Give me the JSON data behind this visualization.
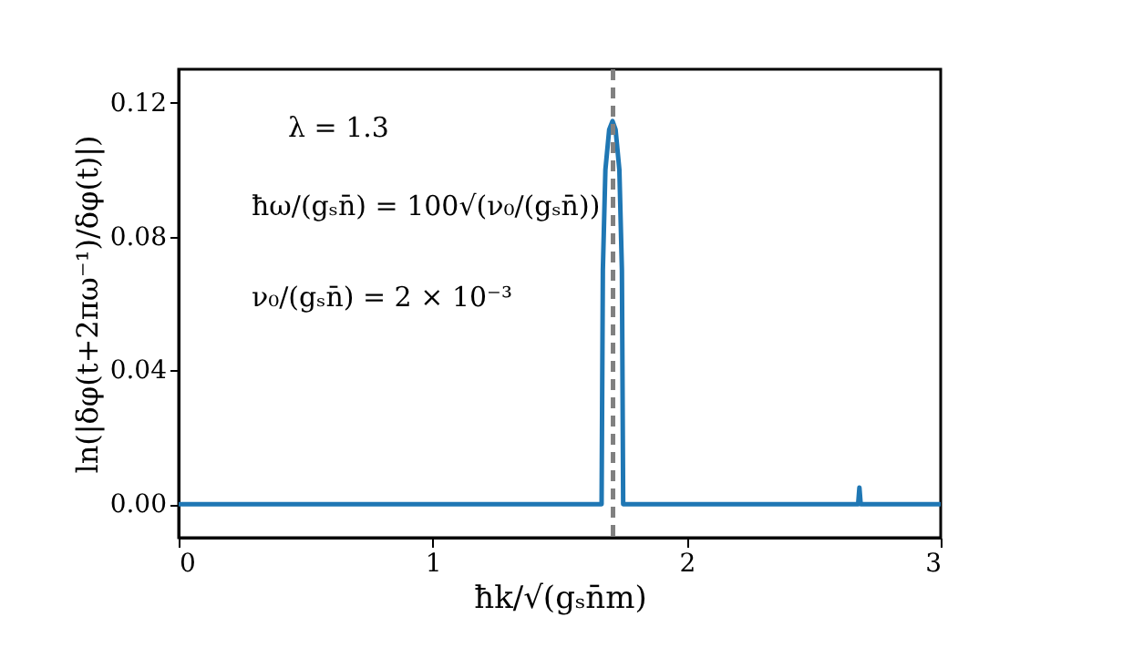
{
  "chart_data": {
    "type": "line",
    "xlabel": "ħk/√(gₛn̄m)",
    "ylabel": "ln(|δφ(t+2πω⁻¹)/δφ(t)|)",
    "x": [
      0,
      1.6,
      1.665,
      1.67,
      1.68,
      1.695,
      1.708,
      1.72,
      1.735,
      1.745,
      1.75,
      2.67,
      2.675,
      2.68,
      2.685,
      2.69,
      3
    ],
    "series": [
      {
        "color": "#1f77b4",
        "values": [
          0,
          0,
          0,
          0.07,
          0.1,
          0.112,
          0.1145,
          0.112,
          0.1,
          0.07,
          0,
          0,
          0,
          0.005,
          0,
          0,
          0
        ]
      }
    ],
    "xlim": [
      0,
      3
    ],
    "xticks": [
      0,
      1,
      2,
      3
    ],
    "ylim": [
      -0.01,
      0.13
    ],
    "yticks": [
      {
        "value": 0,
        "label": "0.00"
      },
      {
        "value": 0.04,
        "label": "0.04"
      },
      {
        "value": 0.08,
        "label": "0.08"
      },
      {
        "value": 0.12,
        "label": "0.12"
      }
    ],
    "ref_lines": [
      {
        "axis": "x",
        "value": 1.71,
        "color": "#808080",
        "line_style": "dashed"
      }
    ],
    "annotations": [
      "λ = 1.3",
      "ħω/(gₛn̄) = 100√(ν₀/(gₛn̄))",
      "ν₀/(gₛn̄) = 2 × 10⁻³"
    ],
    "grid": false
  }
}
